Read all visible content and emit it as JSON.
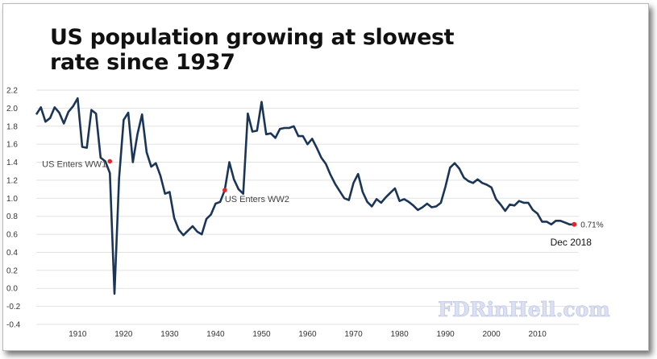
{
  "title_line1": "US population growing at slowest",
  "title_line2": "rate since 1937",
  "watermark": "FDRinHell.com",
  "colors": {
    "line": "#1b3556",
    "marker": "#e0252b",
    "grid": "#e2e2e2"
  },
  "chart_data": {
    "type": "line",
    "title": "US population growing at slowest rate since 1937",
    "xlabel": "",
    "ylabel": "",
    "xlim": [
      1901,
      2019
    ],
    "ylim": [
      -0.4,
      2.2
    ],
    "grid": true,
    "x_ticks": [
      1910,
      1920,
      1930,
      1940,
      1950,
      1960,
      1970,
      1980,
      1990,
      2000,
      2010
    ],
    "y_ticks": [
      -0.4,
      -0.2,
      0.0,
      0.2,
      0.4,
      0.6,
      0.8,
      1.0,
      1.2,
      1.4,
      1.6,
      1.8,
      2.0,
      2.2
    ],
    "series": [
      {
        "x": [
          1901,
          1902,
          1903,
          1904,
          1905,
          1906,
          1907,
          1908,
          1909,
          1910,
          1911,
          1912,
          1913,
          1914,
          1915,
          1916,
          1917,
          1918,
          1919,
          1920,
          1921,
          1922,
          1923,
          1924,
          1925,
          1926,
          1927,
          1928,
          1929,
          1930,
          1931,
          1932,
          1933,
          1934,
          1935,
          1936,
          1937,
          1938,
          1939,
          1940,
          1941,
          1942,
          1943,
          1944,
          1945,
          1946,
          1947,
          1948,
          1949,
          1950,
          1951,
          1952,
          1953,
          1954,
          1955,
          1956,
          1957,
          1958,
          1959,
          1960,
          1961,
          1962,
          1963,
          1964,
          1965,
          1966,
          1967,
          1968,
          1969,
          1970,
          1971,
          1972,
          1973,
          1974,
          1975,
          1976,
          1977,
          1978,
          1979,
          1980,
          1981,
          1982,
          1983,
          1984,
          1985,
          1986,
          1987,
          1988,
          1989,
          1990,
          1991,
          1992,
          1993,
          1994,
          1995,
          1996,
          1997,
          1998,
          1999,
          2000,
          2001,
          2002,
          2003,
          2004,
          2005,
          2006,
          2007,
          2008,
          2009,
          2010,
          2011,
          2012,
          2013,
          2014,
          2015,
          2016,
          2017,
          2018
        ],
        "y": [
          1.93,
          2.01,
          1.85,
          1.89,
          2.01,
          1.95,
          1.83,
          1.96,
          2.02,
          2.11,
          1.57,
          1.56,
          1.98,
          1.94,
          1.45,
          1.41,
          1.28,
          -0.06,
          1.22,
          1.87,
          1.95,
          1.4,
          1.71,
          1.93,
          1.51,
          1.35,
          1.39,
          1.25,
          1.05,
          1.07,
          0.78,
          0.65,
          0.59,
          0.64,
          0.69,
          0.63,
          0.6,
          0.77,
          0.82,
          0.94,
          0.96,
          1.09,
          1.4,
          1.21,
          1.1,
          1.05,
          1.94,
          1.74,
          1.75,
          2.07,
          1.71,
          1.72,
          1.67,
          1.77,
          1.78,
          1.78,
          1.8,
          1.69,
          1.69,
          1.6,
          1.66,
          1.56,
          1.45,
          1.38,
          1.26,
          1.16,
          1.08,
          1.0,
          0.98,
          1.17,
          1.27,
          1.07,
          0.96,
          0.91,
          0.99,
          0.95,
          1.01,
          1.06,
          1.11,
          0.97,
          0.99,
          0.96,
          0.92,
          0.87,
          0.9,
          0.94,
          0.9,
          0.91,
          0.95,
          1.13,
          1.34,
          1.39,
          1.33,
          1.23,
          1.19,
          1.17,
          1.21,
          1.17,
          1.15,
          1.12,
          0.99,
          0.93,
          0.86,
          0.93,
          0.92,
          0.97,
          0.95,
          0.95,
          0.87,
          0.83,
          0.74,
          0.74,
          0.71,
          0.75,
          0.75,
          0.73,
          0.71,
          0.71
        ]
      }
    ],
    "annotations": [
      {
        "x": 1917,
        "y": 1.41,
        "label": "US Enters WW1"
      },
      {
        "x": 1942,
        "y": 1.09,
        "label": "US Enters WW2"
      },
      {
        "x": 2018,
        "y": 0.71,
        "label": "0.71%",
        "sublabel": "Dec 2018"
      }
    ]
  }
}
